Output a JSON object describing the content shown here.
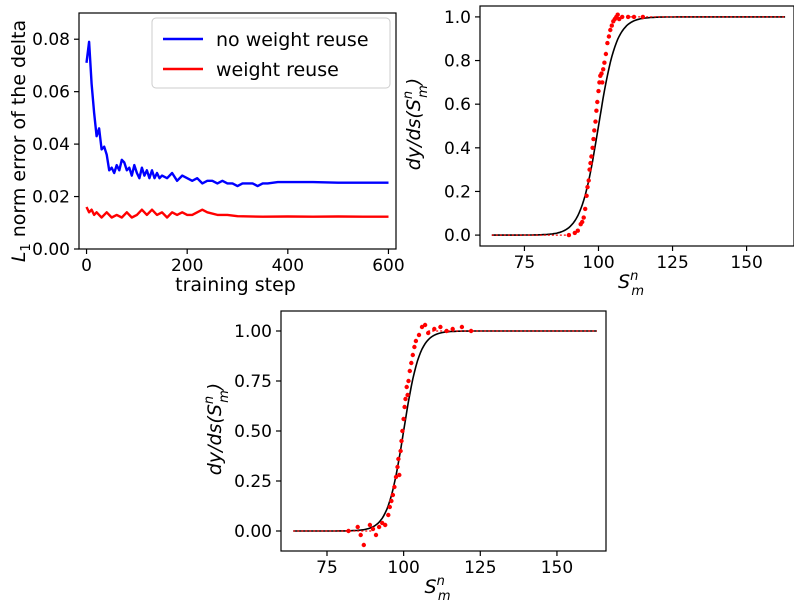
{
  "figure": {
    "background": "#ffffff"
  },
  "chart_data": [
    {
      "id": "panel1",
      "type": "line",
      "title": "",
      "xlabel": "training step",
      "ylabel": "L1 norm error of the delta",
      "ylabel_main": "L",
      "ylabel_sub": "1",
      "ylabel_rest": " norm error of the delta",
      "xlim": [
        -15,
        615
      ],
      "ylim": [
        0,
        0.09
      ],
      "xticks": [
        0,
        200,
        400,
        600
      ],
      "xtick_labels": [
        "0",
        "200",
        "400",
        "600"
      ],
      "yticks": [
        0,
        0.02,
        0.04,
        0.06,
        0.08
      ],
      "ytick_labels": [
        "0.00",
        "0.02",
        "0.04",
        "0.06",
        "0.08"
      ],
      "grid": false,
      "legend_position": "top-right",
      "series": [
        {
          "name": "no weight reuse",
          "color": "#0000ff",
          "x": [
            0,
            5,
            10,
            15,
            20,
            25,
            30,
            35,
            40,
            45,
            50,
            55,
            60,
            65,
            70,
            75,
            80,
            85,
            90,
            95,
            100,
            105,
            110,
            115,
            120,
            125,
            130,
            135,
            140,
            145,
            150,
            160,
            170,
            180,
            190,
            200,
            210,
            220,
            230,
            240,
            250,
            260,
            270,
            280,
            290,
            300,
            310,
            320,
            330,
            340,
            350,
            360,
            380,
            400,
            450,
            500,
            550,
            600
          ],
          "y": [
            0.071,
            0.079,
            0.063,
            0.052,
            0.043,
            0.046,
            0.038,
            0.039,
            0.036,
            0.03,
            0.031,
            0.029,
            0.032,
            0.03,
            0.034,
            0.033,
            0.03,
            0.031,
            0.028,
            0.032,
            0.029,
            0.027,
            0.031,
            0.028,
            0.03,
            0.027,
            0.03,
            0.027,
            0.029,
            0.027,
            0.028,
            0.027,
            0.029,
            0.026,
            0.028,
            0.027,
            0.026,
            0.027,
            0.025,
            0.026,
            0.026,
            0.025,
            0.026,
            0.025,
            0.025,
            0.024,
            0.025,
            0.025,
            0.025,
            0.024,
            0.025,
            0.025,
            0.0255,
            0.0255,
            0.0255,
            0.0253,
            0.0253,
            0.0253
          ]
        },
        {
          "name": "weight reuse",
          "color": "#ff0000",
          "x": [
            0,
            5,
            10,
            15,
            20,
            25,
            30,
            40,
            50,
            60,
            70,
            80,
            90,
            100,
            110,
            120,
            130,
            140,
            150,
            160,
            170,
            180,
            190,
            200,
            210,
            220,
            230,
            240,
            260,
            280,
            300,
            350,
            400,
            450,
            500,
            550,
            600
          ],
          "y": [
            0.016,
            0.014,
            0.015,
            0.013,
            0.014,
            0.013,
            0.012,
            0.014,
            0.012,
            0.013,
            0.012,
            0.014,
            0.012,
            0.013,
            0.015,
            0.013,
            0.015,
            0.013,
            0.014,
            0.012,
            0.014,
            0.013,
            0.014,
            0.013,
            0.013,
            0.014,
            0.015,
            0.014,
            0.013,
            0.013,
            0.0125,
            0.0123,
            0.0124,
            0.0123,
            0.0124,
            0.0123,
            0.0123
          ]
        }
      ]
    },
    {
      "id": "panel2",
      "type": "scatter",
      "title": "",
      "xlabel": "S_m^n",
      "ylabel": "dy/ds(S_m^n)",
      "xlim": [
        60,
        166
      ],
      "ylim": [
        -0.05,
        1.05
      ],
      "xticks": [
        75,
        100,
        125,
        150
      ],
      "xtick_labels": [
        "75",
        "100",
        "125",
        "150"
      ],
      "yticks": [
        0,
        0.2,
        0.4,
        0.6,
        0.8,
        1.0
      ],
      "ytick_labels": [
        "0.0",
        "0.2",
        "0.4",
        "0.6",
        "0.8",
        "1.0"
      ],
      "grid": false,
      "reference_curve": {
        "color": "#000000",
        "center": 100,
        "width": 3,
        "x_range": [
          64,
          163
        ]
      },
      "scatter_color": "#ff0000",
      "scatter_points": [
        {
          "x": 90,
          "y": 0.0
        },
        {
          "x": 92,
          "y": 0.01
        },
        {
          "x": 93,
          "y": 0.02
        },
        {
          "x": 94,
          "y": 0.05
        },
        {
          "x": 94.5,
          "y": 0.06
        },
        {
          "x": 95,
          "y": 0.08
        },
        {
          "x": 95.5,
          "y": 0.12
        },
        {
          "x": 96,
          "y": 0.18
        },
        {
          "x": 96.3,
          "y": 0.22
        },
        {
          "x": 96.7,
          "y": 0.25
        },
        {
          "x": 97,
          "y": 0.3
        },
        {
          "x": 97.3,
          "y": 0.33
        },
        {
          "x": 97.6,
          "y": 0.36
        },
        {
          "x": 98,
          "y": 0.4
        },
        {
          "x": 98.3,
          "y": 0.44
        },
        {
          "x": 98.6,
          "y": 0.48
        },
        {
          "x": 99,
          "y": 0.52
        },
        {
          "x": 99.3,
          "y": 0.57
        },
        {
          "x": 99.6,
          "y": 0.61
        },
        {
          "x": 100,
          "y": 0.66
        },
        {
          "x": 100.3,
          "y": 0.7
        },
        {
          "x": 100.6,
          "y": 0.73
        },
        {
          "x": 101,
          "y": 0.74
        },
        {
          "x": 101.3,
          "y": 0.7
        },
        {
          "x": 101.6,
          "y": 0.76
        },
        {
          "x": 102,
          "y": 0.79
        },
        {
          "x": 102.5,
          "y": 0.83
        },
        {
          "x": 103,
          "y": 0.88
        },
        {
          "x": 103.5,
          "y": 0.91
        },
        {
          "x": 104,
          "y": 0.94
        },
        {
          "x": 104.5,
          "y": 0.96
        },
        {
          "x": 105,
          "y": 0.98
        },
        {
          "x": 105.5,
          "y": 0.99
        },
        {
          "x": 106,
          "y": 1.0
        },
        {
          "x": 106.5,
          "y": 1.01
        },
        {
          "x": 107,
          "y": 0.99
        },
        {
          "x": 108,
          "y": 1.0
        },
        {
          "x": 110,
          "y": 1.0
        },
        {
          "x": 112,
          "y": 1.0
        },
        {
          "x": 115,
          "y": 1.0
        }
      ]
    },
    {
      "id": "panel3",
      "type": "scatter",
      "title": "",
      "xlabel": "S_m^n",
      "ylabel": "dy/ds(S_m^n)",
      "xlim": [
        60,
        166
      ],
      "ylim": [
        -0.1,
        1.1
      ],
      "xticks": [
        75,
        100,
        125,
        150
      ],
      "xtick_labels": [
        "75",
        "100",
        "125",
        "150"
      ],
      "yticks": [
        0,
        0.25,
        0.5,
        0.75,
        1.0
      ],
      "ytick_labels": [
        "0.00",
        "0.25",
        "0.50",
        "0.75",
        "1.00"
      ],
      "grid": false,
      "reference_curve": {
        "color": "#000000",
        "center": 100,
        "width": 2.6,
        "x_range": [
          64,
          163
        ]
      },
      "scatter_color": "#ff0000",
      "scatter_points": [
        {
          "x": 82,
          "y": 0.0
        },
        {
          "x": 85,
          "y": 0.02
        },
        {
          "x": 86,
          "y": -0.02
        },
        {
          "x": 87,
          "y": -0.07
        },
        {
          "x": 89,
          "y": 0.03
        },
        {
          "x": 90,
          "y": 0.01
        },
        {
          "x": 91,
          "y": -0.02
        },
        {
          "x": 92,
          "y": 0.02
        },
        {
          "x": 93,
          "y": 0.04
        },
        {
          "x": 94,
          "y": 0.03
        },
        {
          "x": 95,
          "y": 0.08
        },
        {
          "x": 95.5,
          "y": 0.12
        },
        {
          "x": 96,
          "y": 0.15
        },
        {
          "x": 96.5,
          "y": 0.18
        },
        {
          "x": 97,
          "y": 0.22
        },
        {
          "x": 97.5,
          "y": 0.27
        },
        {
          "x": 98,
          "y": 0.32
        },
        {
          "x": 98.3,
          "y": 0.36
        },
        {
          "x": 98.6,
          "y": 0.28
        },
        {
          "x": 99,
          "y": 0.4
        },
        {
          "x": 99.3,
          "y": 0.45
        },
        {
          "x": 99.6,
          "y": 0.5
        },
        {
          "x": 100,
          "y": 0.56
        },
        {
          "x": 100.3,
          "y": 0.62
        },
        {
          "x": 100.6,
          "y": 0.66
        },
        {
          "x": 101,
          "y": 0.72
        },
        {
          "x": 101.3,
          "y": 0.68
        },
        {
          "x": 101.6,
          "y": 0.75
        },
        {
          "x": 102,
          "y": 0.8
        },
        {
          "x": 102.5,
          "y": 0.84
        },
        {
          "x": 103,
          "y": 0.88
        },
        {
          "x": 103.5,
          "y": 0.92
        },
        {
          "x": 104,
          "y": 0.95
        },
        {
          "x": 105,
          "y": 0.98
        },
        {
          "x": 106,
          "y": 1.02
        },
        {
          "x": 107,
          "y": 1.03
        },
        {
          "x": 108,
          "y": 0.99
        },
        {
          "x": 110,
          "y": 1.01
        },
        {
          "x": 112,
          "y": 1.02
        },
        {
          "x": 114,
          "y": 1.0
        },
        {
          "x": 116,
          "y": 1.01
        },
        {
          "x": 119,
          "y": 1.02
        },
        {
          "x": 122,
          "y": 1.0
        }
      ]
    }
  ]
}
